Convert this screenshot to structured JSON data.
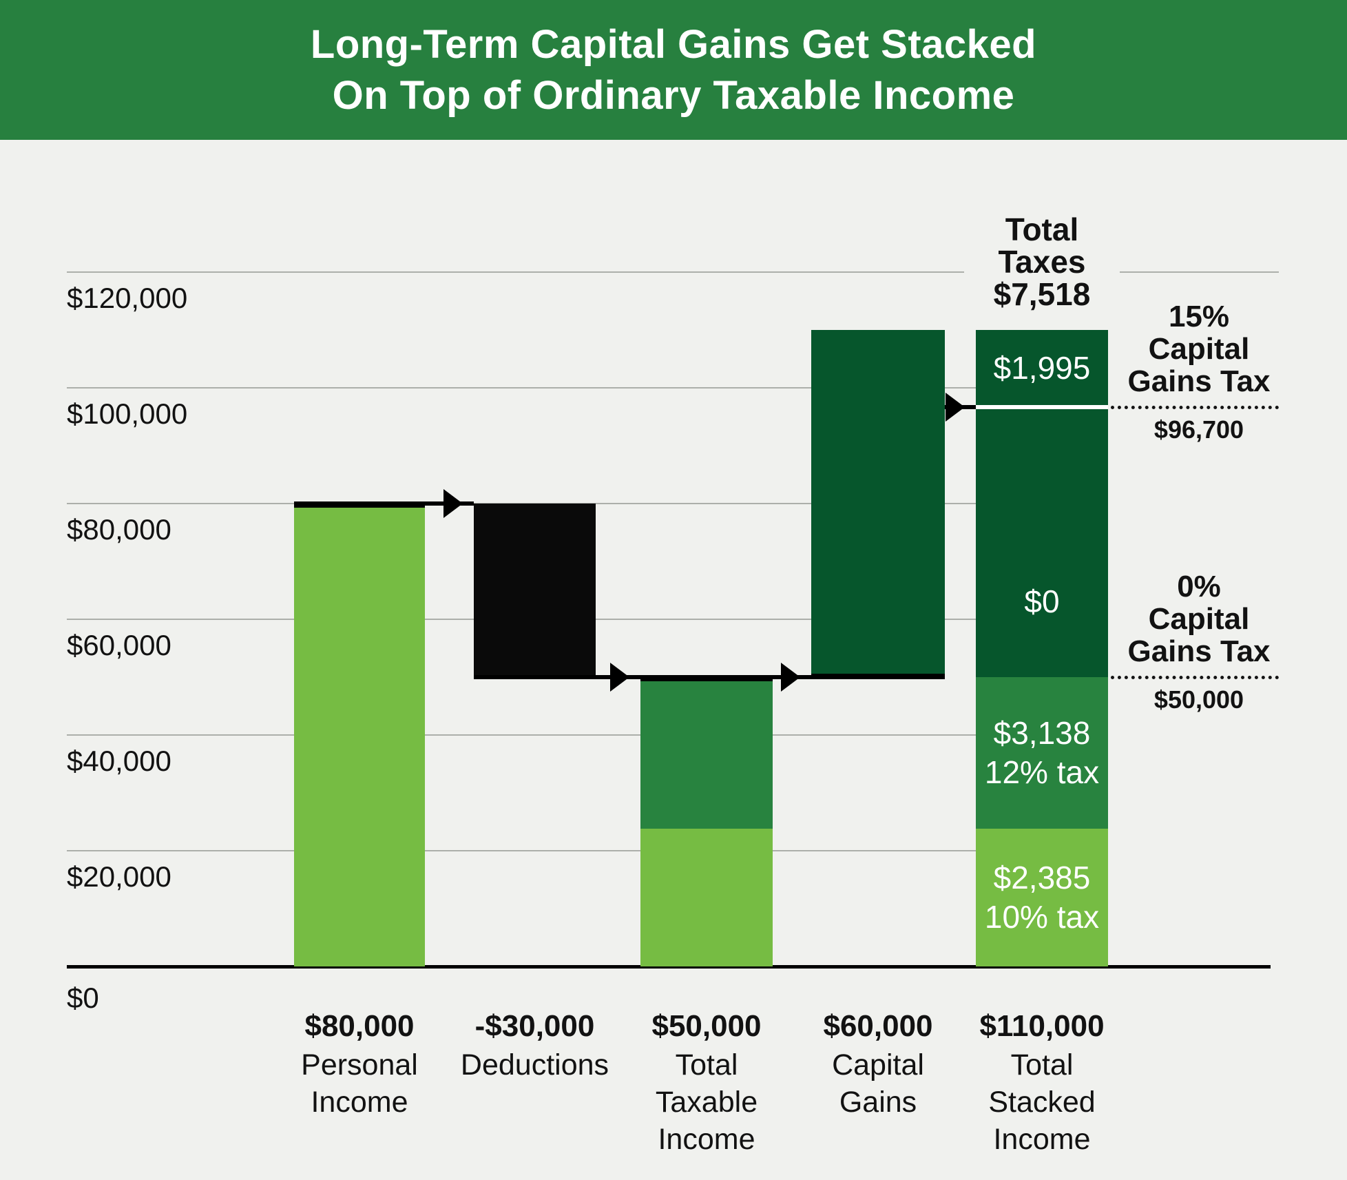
{
  "title": {
    "line1": "Long-Term Capital Gains Get Stacked",
    "line2": "On Top of Ordinary Taxable Income"
  },
  "colors": {
    "background": "#F0F1EE",
    "header_bg": "#27803F",
    "light_green": "#76BC43",
    "medium_green": "#28833F",
    "dark_green": "#06562C",
    "bar_black": "#0A0A0A",
    "gridline": "#ACAFAA",
    "axis": "#000000",
    "text": "#121212",
    "white_text": "#FFFFFF"
  },
  "chart_data": {
    "type": "waterfall-stacked-bar",
    "title": "Long-Term Capital Gains Get Stacked On Top of Ordinary Taxable Income",
    "y_axis": {
      "min": 0,
      "max": 120000,
      "ticks": [
        {
          "value": 0,
          "label": "$0"
        },
        {
          "value": 20000,
          "label": "$20,000"
        },
        {
          "value": 40000,
          "label": "$40,000"
        },
        {
          "value": 60000,
          "label": "$60,000"
        },
        {
          "value": 80000,
          "label": "$80,000"
        },
        {
          "value": 100000,
          "label": "$100,000"
        },
        {
          "value": 120000,
          "label": "$120,000"
        }
      ]
    },
    "bars": [
      {
        "name": "personal-income",
        "label_amount": "$80,000",
        "label_lines": [
          "Personal",
          "Income"
        ],
        "segments": [
          {
            "from": 0,
            "to": 80000,
            "color": "light_green",
            "top_border": true
          }
        ]
      },
      {
        "name": "deductions",
        "label_amount": "-$30,000",
        "label_lines": [
          "Deductions"
        ],
        "segments": [
          {
            "from": 50000,
            "to": 80000,
            "color": "bar_black"
          }
        ]
      },
      {
        "name": "total-taxable-income",
        "label_amount": "$50,000",
        "label_lines": [
          "Total",
          "Taxable",
          "Income"
        ],
        "segments": [
          {
            "from": 0,
            "to": 23850,
            "color": "light_green"
          },
          {
            "from": 23850,
            "to": 50000,
            "color": "medium_green",
            "top_border": true
          }
        ]
      },
      {
        "name": "capital-gains",
        "label_amount": "$60,000",
        "label_lines": [
          "Capital",
          "Gains"
        ],
        "segments": [
          {
            "from": 50000,
            "to": 110000,
            "color": "dark_green",
            "bottom_border": true
          }
        ]
      },
      {
        "name": "total-stacked-income",
        "label_amount": "$110,000",
        "label_lines": [
          "Total",
          "Stacked",
          "Income"
        ],
        "header_label": [
          "Total",
          "Taxes",
          "$7,518"
        ],
        "segments": [
          {
            "from": 0,
            "to": 23850,
            "color": "light_green",
            "text": [
              "$2,385",
              "10% tax"
            ]
          },
          {
            "from": 23850,
            "to": 50000,
            "color": "medium_green",
            "text": [
              "$3,138",
              "12% tax"
            ]
          },
          {
            "from": 50000,
            "to": 96700,
            "color": "dark_green",
            "text": [
              "$0"
            ],
            "label_at_value": 63000
          },
          {
            "from": 96700,
            "to": 110000,
            "color": "dark_green",
            "text": [
              "$1,995"
            ],
            "divider_below": true
          }
        ]
      }
    ],
    "arrows": [
      {
        "value": 80000,
        "from_bar": 0,
        "from_edge": "left",
        "to_bar": 1,
        "to_edge": "left",
        "heads": [
          1
        ]
      },
      {
        "value": 50000,
        "from_bar": 1,
        "from_edge": "left",
        "to_bar": 3,
        "to_edge": "right",
        "heads": [
          2,
          3
        ]
      },
      {
        "value": 96700,
        "from_bar": 3,
        "from_edge": "right",
        "to_bar": 4,
        "to_edge": "left",
        "heads": [
          4
        ]
      }
    ],
    "thresholds": [
      {
        "value": 96700,
        "name": "capital-gains-15pct",
        "label_lines": [
          "15%",
          "Capital",
          "Gains Tax"
        ],
        "amount_label": "$96,700"
      },
      {
        "value": 50000,
        "name": "capital-gains-0pct",
        "label_lines": [
          "0%",
          "Capital",
          "Gains Tax"
        ],
        "amount_label": "$50,000"
      }
    ]
  }
}
